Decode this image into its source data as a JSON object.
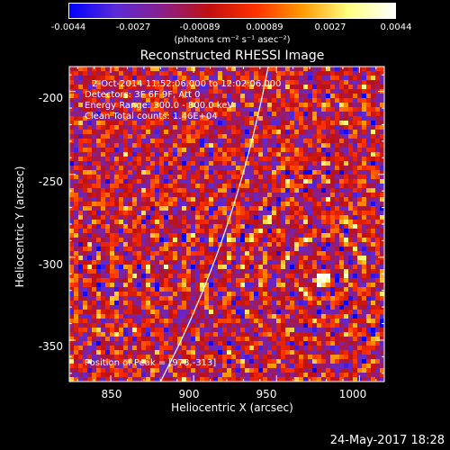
{
  "colorbar": {
    "ticks": [
      "-0.0044",
      "-0.0027",
      "-0.00089",
      "0.00089",
      "0.0027",
      "0.0044"
    ],
    "unit": "(photons cm⁻² s⁻¹ asec⁻²)",
    "colors": [
      "#0000ff",
      "#5b2bd6",
      "#8a1f8a",
      "#c01010",
      "#ff3000",
      "#ff9a00",
      "#ffff80",
      "#ffffff"
    ]
  },
  "chart_data": {
    "type": "heatmap",
    "title": "Reconstructed RHESSI Image",
    "xlabel": "Heliocentric X (arcsec)",
    "ylabel": "Heliocentric Y (arcsec)",
    "xlim": [
      825,
      1015
    ],
    "ylim": [
      -375,
      -185
    ],
    "x_ticks": [
      850,
      900,
      950,
      1000
    ],
    "y_ticks": [
      -200,
      -250,
      -300,
      -350
    ],
    "zlim": [
      -0.0044,
      0.0044
    ],
    "peak": [
      978,
      -313
    ],
    "annotations": [
      "2-Oct-2014 11:52:06.000 to 12:02:06.000",
      "Detectors: 3F 6F 9F, Att 0",
      "Energy Range: 300.0 - 800.0 keV",
      "Clean     Total counts: 1.46E+04",
      "Position of Peak = [978,-313]"
    ]
  },
  "footer": {
    "timestamp": "24-May-2017 18:28"
  }
}
